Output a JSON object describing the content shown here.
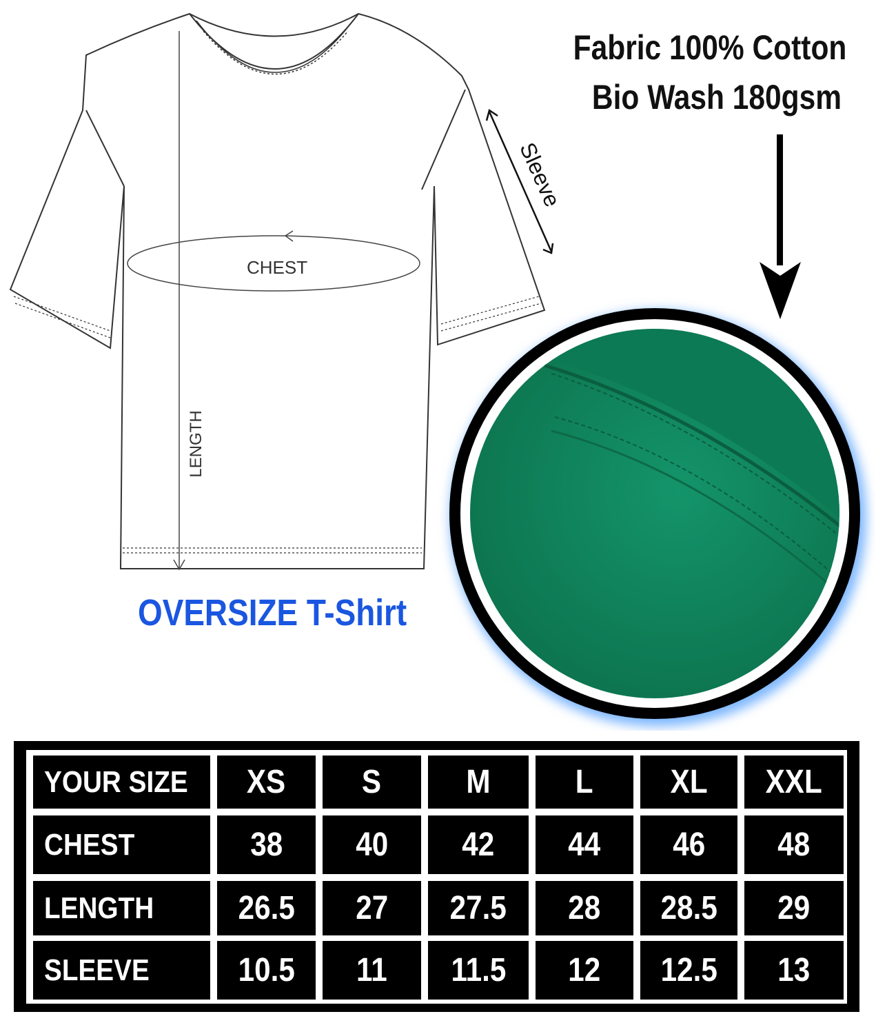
{
  "fabric_info": {
    "line1": "Fabric 100% Cotton",
    "line2": "Bio Wash 180gsm"
  },
  "diagram_labels": {
    "sleeve": "Sleeve",
    "chest": "CHEST",
    "length": "LENGTH"
  },
  "product_title": "OVERSIZE T-Shirt",
  "colors": {
    "title_blue": "#1a56e0",
    "fabric_green": "#128a5e",
    "table_bg": "#000000",
    "table_text": "#ffffff"
  },
  "size_table": {
    "header": [
      "YOUR SIZE",
      "XS",
      "S",
      "M",
      "L",
      "XL",
      "XXL"
    ],
    "rows": [
      [
        "CHEST",
        "38",
        "40",
        "42",
        "44",
        "46",
        "48"
      ],
      [
        "LENGTH",
        "26.5",
        "27",
        "27.5",
        "28",
        "28.5",
        "29"
      ],
      [
        "SLEEVE",
        "10.5",
        "11",
        "11.5",
        "12",
        "12.5",
        "13"
      ]
    ]
  }
}
